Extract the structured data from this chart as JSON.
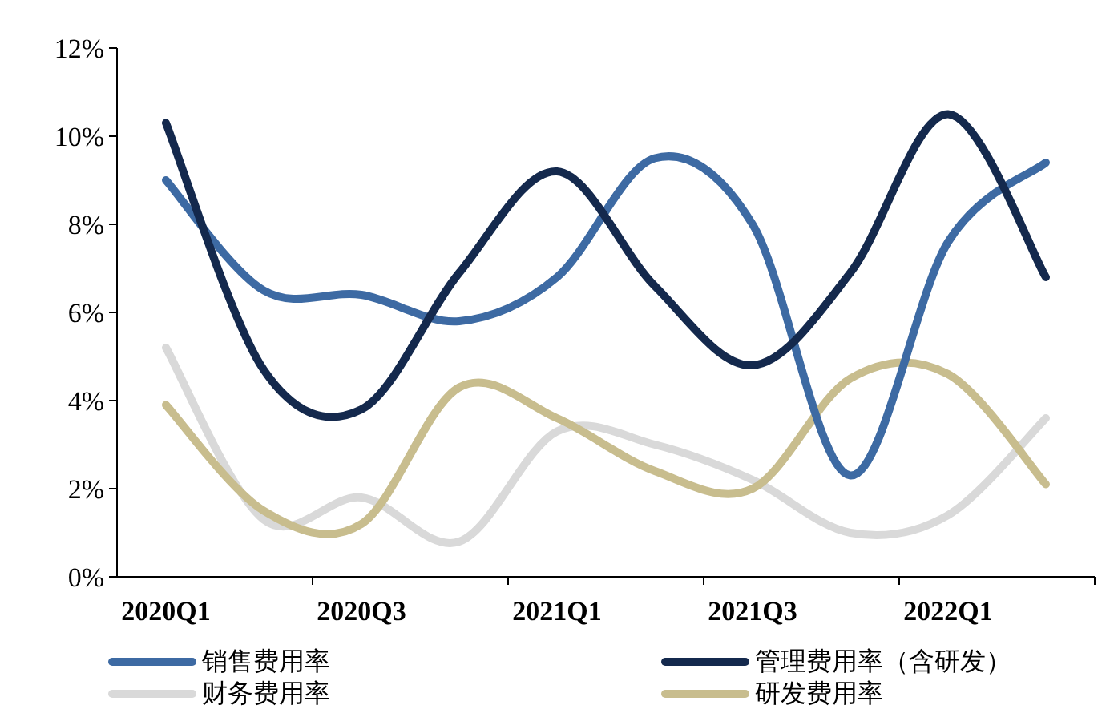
{
  "chart_data": {
    "type": "line",
    "categories": [
      "2020Q1",
      null,
      "2020Q3",
      null,
      "2021Q1",
      null,
      "2021Q3",
      null,
      "2022Q1",
      null
    ],
    "ylim": [
      0,
      12
    ],
    "yticks": [
      {
        "value": 0,
        "label": "0%"
      },
      {
        "value": 2,
        "label": "2%"
      },
      {
        "value": 4,
        "label": "4%"
      },
      {
        "value": 6,
        "label": "6%"
      },
      {
        "value": 8,
        "label": "8%"
      },
      {
        "value": 10,
        "label": "10%"
      },
      {
        "value": 12,
        "label": "12%"
      }
    ],
    "grid": false,
    "legend": "bottom",
    "marker": "none",
    "line_style": "solid",
    "series": [
      {
        "name": "销售费用率",
        "color": "#3d6aa3",
        "values": [
          9.0,
          6.5,
          6.4,
          5.8,
          6.8,
          9.5,
          8.0,
          2.3,
          7.6,
          9.4
        ]
      },
      {
        "name": "管理费用率（含研发）",
        "color": "#14294d",
        "values": [
          10.3,
          4.7,
          3.8,
          6.9,
          9.2,
          6.6,
          4.8,
          6.9,
          10.5,
          6.8
        ]
      },
      {
        "name": "财务费用率",
        "color": "#d9d9d9",
        "values": [
          5.2,
          1.3,
          1.8,
          0.8,
          3.3,
          3.0,
          2.2,
          1.0,
          1.4,
          3.6
        ]
      },
      {
        "name": "研发费用率",
        "color": "#c8bd8e",
        "values": [
          3.9,
          1.5,
          1.2,
          4.3,
          3.6,
          2.4,
          2.0,
          4.5,
          4.6,
          2.1
        ]
      }
    ]
  }
}
